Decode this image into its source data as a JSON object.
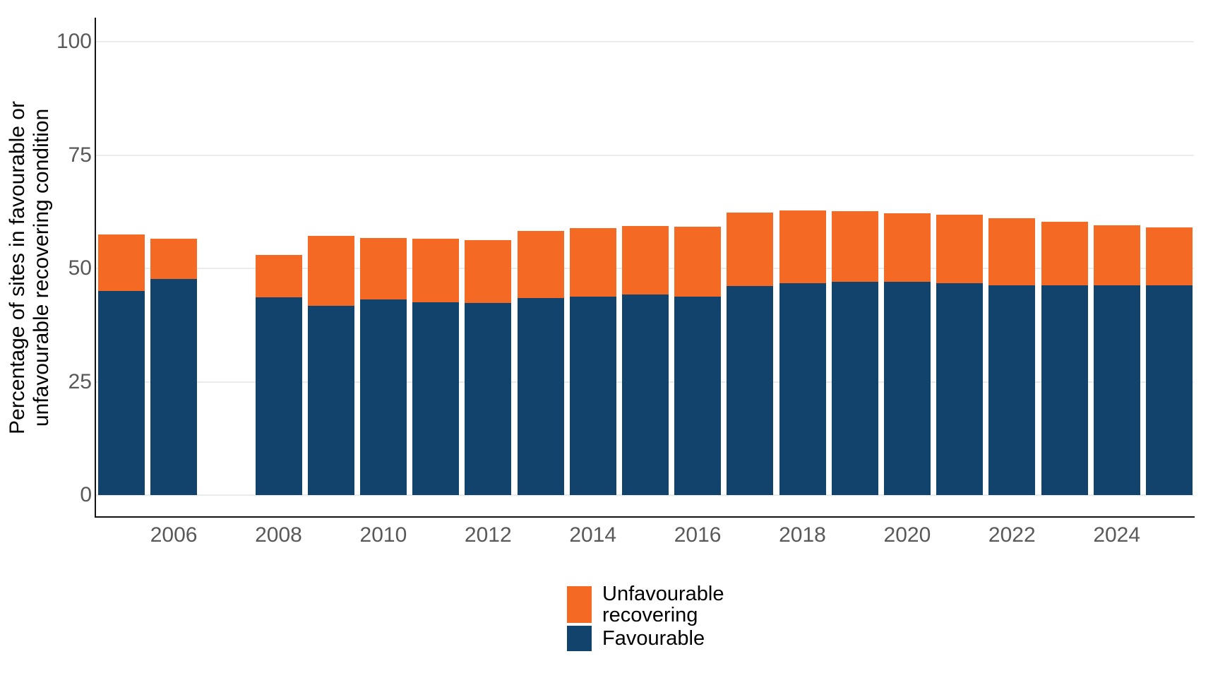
{
  "chart_data": {
    "type": "bar",
    "stacked": true,
    "title": "",
    "xlabel": "",
    "ylabel": "Percentage of sites in favourable or unfavourable recovering condition",
    "ylabel_lines": [
      "Percentage of sites in favourable or",
      "unfavourable recovering condition"
    ],
    "ylim": [
      0,
      100
    ],
    "yticks": [
      0,
      25,
      50,
      75,
      100
    ],
    "xtick_years": [
      2006,
      2008,
      2010,
      2012,
      2014,
      2016,
      2018,
      2020,
      2022,
      2024
    ],
    "grid": "horizontal-gridlines",
    "legend_position": "bottom-center",
    "years": [
      2005,
      2006,
      2007,
      2008,
      2009,
      2010,
      2011,
      2012,
      2013,
      2014,
      2015,
      2016,
      2017,
      2018,
      2019,
      2020,
      2021,
      2022,
      2023,
      2024,
      2025
    ],
    "missing_years": [
      2007
    ],
    "series": [
      {
        "name": "Favourable",
        "color": "#12436D",
        "values": [
          45.0,
          47.7,
          null,
          43.6,
          41.8,
          43.2,
          42.6,
          42.4,
          43.4,
          43.8,
          44.2,
          43.8,
          46.1,
          46.7,
          47.0,
          47.1,
          46.7,
          46.3,
          46.3,
          46.2,
          46.2
        ]
      },
      {
        "name": "Unfavourable recovering",
        "color": "#F46A25",
        "values": [
          12.5,
          8.9,
          null,
          9.4,
          15.4,
          13.5,
          14.0,
          13.9,
          14.8,
          15.1,
          15.1,
          15.4,
          16.2,
          16.0,
          15.6,
          15.1,
          15.2,
          14.8,
          14.0,
          13.3,
          12.9
        ]
      }
    ]
  },
  "legend": {
    "items": [
      {
        "label": "Unfavourable recovering",
        "label_lines": [
          "Unfavourable",
          "recovering"
        ],
        "color": "#F46A25"
      },
      {
        "label": "Favourable",
        "label_lines": [
          "Favourable"
        ],
        "color": "#12436D"
      }
    ]
  },
  "colors": {
    "favourable": "#12436D",
    "unfavourable_recovering": "#F46A25",
    "gridline": "#ebebeb",
    "axis_line": "#141414",
    "tick_label": "#595959",
    "title_text": "#000000"
  }
}
